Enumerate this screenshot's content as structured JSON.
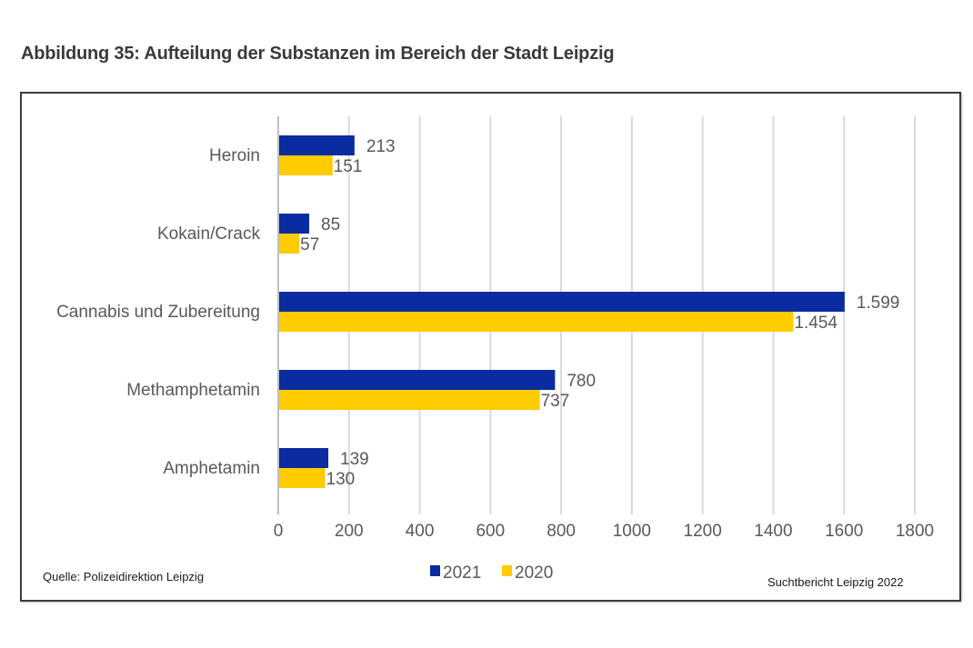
{
  "figure": {
    "title": "Abbildung 35: Aufteilung der Substanzen im Bereich der Stadt Leipzig",
    "source": "Quelle: Polizeidirektion Leipzig",
    "report": "Suchtbericht Leipzig 2022"
  },
  "chart_data": {
    "type": "bar",
    "orientation": "horizontal",
    "title": "Abbildung 35: Aufteilung der Substanzen im Bereich der Stadt Leipzig",
    "xlabel": "",
    "ylabel": "",
    "categories": [
      "Heroin",
      "Kokain/Crack",
      "Cannabis und Zubereitung",
      "Methamphetamin",
      "Amphetamin"
    ],
    "series": [
      {
        "name": "2021",
        "color": "#0a2ca0",
        "values": [
          213,
          85,
          1599,
          780,
          139
        ],
        "labels": [
          "213",
          "85",
          "1.599",
          "780",
          "139"
        ]
      },
      {
        "name": "2020",
        "color": "#ffcc00",
        "values": [
          151,
          57,
          1454,
          737,
          130
        ],
        "labels": [
          "151",
          "57",
          "1.454",
          "737",
          "130"
        ]
      }
    ],
    "xlim": [
      0,
      1800
    ],
    "xticks": [
      "0",
      "200",
      "400",
      "600",
      "800",
      "1000",
      "1200",
      "1400",
      "1600",
      "1800"
    ],
    "grid": true,
    "legend": "bottom-center"
  }
}
